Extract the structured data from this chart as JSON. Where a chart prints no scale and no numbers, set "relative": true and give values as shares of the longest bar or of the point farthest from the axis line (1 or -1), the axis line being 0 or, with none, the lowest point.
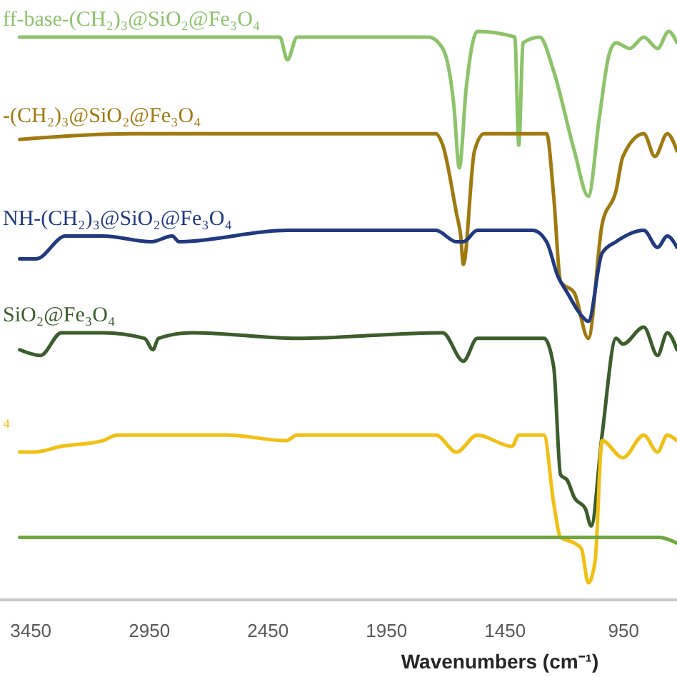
{
  "chart_data": {
    "type": "line",
    "xlabel": "Wavenumbers (cm⁻¹)",
    "relative": true,
    "xlim": [
      3580,
      725
    ],
    "xticks": [
      3450,
      2950,
      2450,
      1950,
      1450,
      950
    ],
    "grid": false,
    "legend": false,
    "line_style": "solid",
    "marker": "none",
    "series": [
      {
        "name": "ff-base-(CH₂)₃@SiO₂@Fe₃O₄",
        "color": "#8cc46a",
        "x": [
          3497,
          3204,
          2400,
          2368,
          2327,
          2035,
          1772,
          1713,
          1666,
          1643,
          1614,
          1567,
          1409,
          1392,
          1374,
          1304,
          1245,
          1158,
          1099,
          1052,
          1011,
          982,
          924,
          865,
          807,
          760,
          725
        ],
        "values": [
          0.99,
          0.99,
          0.99,
          0.95,
          0.99,
          0.99,
          0.99,
          0.97,
          0.87,
          0.76,
          0.9,
          1.0,
          0.99,
          0.8,
          0.98,
          0.99,
          0.93,
          0.79,
          0.71,
          0.85,
          0.96,
          0.98,
          0.97,
          0.99,
          0.97,
          1.0,
          0.98
        ]
      },
      {
        "name": "-(CH₂)₃@SiO₂@Fe₃O₄",
        "color": "#a07a10",
        "x": [
          3497,
          3029,
          2620,
          2368,
          2093,
          1742,
          1713,
          1655,
          1637,
          1626,
          1579,
          1538,
          1275,
          1245,
          1216,
          1158,
          1099,
          1041,
          982,
          953,
          865,
          818,
          766,
          725
        ],
        "values": [
          0.81,
          0.82,
          0.82,
          0.82,
          0.82,
          0.82,
          0.8,
          0.68,
          0.64,
          0.59,
          0.79,
          0.82,
          0.82,
          0.71,
          0.56,
          0.54,
          0.46,
          0.66,
          0.72,
          0.78,
          0.82,
          0.78,
          0.82,
          0.79
        ]
      },
      {
        "name": "NH-(CH₂)₃@SiO₂@Fe₃O₄",
        "color": "#203a80",
        "x": [
          3497,
          3427,
          3304,
          3146,
          2941,
          2854,
          2824,
          2368,
          1742,
          1655,
          1626,
          1567,
          1333,
          1275,
          1228,
          1187,
          1128,
          1099,
          1041,
          982,
          865,
          807,
          766,
          725
        ],
        "values": [
          0.6,
          0.6,
          0.64,
          0.64,
          0.63,
          0.64,
          0.63,
          0.65,
          0.65,
          0.63,
          0.63,
          0.65,
          0.65,
          0.63,
          0.57,
          0.54,
          0.5,
          0.49,
          0.61,
          0.63,
          0.65,
          0.62,
          0.64,
          0.62
        ]
      },
      {
        "name": "SiO₂@Fe₃O₄",
        "color": "#3b5e2b",
        "x": [
          3497,
          3409,
          3321,
          3146,
          2970,
          2935,
          2912,
          2766,
          2327,
          1713,
          1626,
          1567,
          1286,
          1245,
          1216,
          1187,
          1158,
          1111,
          1087,
          1041,
          982,
          953,
          865,
          807,
          766,
          725
        ],
        "values": [
          0.44,
          0.43,
          0.47,
          0.47,
          0.46,
          0.44,
          0.46,
          0.47,
          0.46,
          0.47,
          0.42,
          0.46,
          0.46,
          0.41,
          0.22,
          0.21,
          0.18,
          0.16,
          0.13,
          0.29,
          0.46,
          0.45,
          0.48,
          0.43,
          0.47,
          0.44
        ]
      },
      {
        "name": "₄",
        "color": "#f2c014",
        "x": [
          3497,
          3438,
          3321,
          3146,
          3087,
          2620,
          2374,
          2327,
          1742,
          1655,
          1567,
          1421,
          1392,
          1286,
          1245,
          1216,
          1158,
          1128,
          1099,
          1070,
          1041,
          953,
          865,
          807,
          766,
          725
        ],
        "values": [
          0.26,
          0.26,
          0.27,
          0.28,
          0.29,
          0.29,
          0.28,
          0.29,
          0.29,
          0.26,
          0.29,
          0.27,
          0.29,
          0.29,
          0.17,
          0.11,
          0.1,
          0.09,
          0.03,
          0.07,
          0.28,
          0.25,
          0.29,
          0.26,
          0.29,
          0.28
        ]
      },
      {
        "color": "#6ea83e",
        "x": [
          3497,
          800,
          725
        ],
        "values": [
          0.11,
          0.11,
          0.1
        ]
      }
    ]
  }
}
